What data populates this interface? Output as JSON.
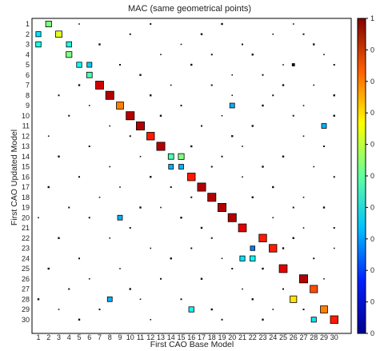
{
  "chart_data": {
    "type": "heatmap",
    "title": "MAC (same geometrical points)",
    "xlabel": "First CAO Base Model",
    "ylabel": "First CAO Updated Model",
    "x_categories": [
      "1",
      "2",
      "3",
      "4",
      "5",
      "6",
      "7",
      "8",
      "9",
      "10",
      "11",
      "12",
      "13",
      "14",
      "15",
      "16",
      "17",
      "18",
      "19",
      "20",
      "21",
      "22",
      "23",
      "24",
      "25",
      "26",
      "27",
      "28",
      "29",
      "30"
    ],
    "y_categories": [
      "1",
      "2",
      "3",
      "4",
      "5",
      "6",
      "7",
      "8",
      "9",
      "10",
      "11",
      "12",
      "13",
      "14",
      "15",
      "16",
      "17",
      "18",
      "19",
      "20",
      "21",
      "22",
      "23",
      "24",
      "25",
      "26",
      "27",
      "28",
      "29",
      "30"
    ],
    "xlim": [
      1,
      30
    ],
    "ylim": [
      1,
      30
    ],
    "y_axis_reversed": true,
    "grid": false,
    "colorbar": {
      "range": [
        0,
        1
      ],
      "tick_values": [
        0,
        0.1,
        0.2,
        0.3,
        0.4,
        0.5,
        0.6,
        0.7,
        0.8,
        0.9,
        1.0
      ],
      "tick_labels": [
        "0",
        "0",
        "0",
        "0",
        "0",
        "0",
        "0",
        "0",
        "0",
        "0",
        "1"
      ],
      "colormap": "jet",
      "colors": [
        "#00008f",
        "#0020ff",
        "#00c0ff",
        "#60ffa0",
        "#ffff00",
        "#ff6000",
        "#800000"
      ]
    },
    "cells": [
      [
        2,
        1,
        0.5
      ],
      [
        1,
        2,
        0.35
      ],
      [
        3,
        2,
        0.6
      ],
      [
        1,
        3,
        0.4
      ],
      [
        4,
        3,
        0.4
      ],
      [
        4,
        4,
        0.5
      ],
      [
        5,
        5,
        0.38
      ],
      [
        6,
        5,
        0.33
      ],
      [
        6,
        6,
        0.45
      ],
      [
        7,
        7,
        0.92
      ],
      [
        8,
        8,
        0.95
      ],
      [
        9,
        9,
        0.75
      ],
      [
        10,
        10,
        0.95
      ],
      [
        11,
        11,
        0.95
      ],
      [
        12,
        12,
        0.85
      ],
      [
        13,
        13,
        0.95
      ],
      [
        14,
        14,
        0.45
      ],
      [
        15,
        14,
        0.5
      ],
      [
        14,
        15,
        0.3
      ],
      [
        15,
        15,
        0.3
      ],
      [
        16,
        16,
        0.85
      ],
      [
        17,
        17,
        0.95
      ],
      [
        18,
        18,
        0.95
      ],
      [
        19,
        19,
        0.95
      ],
      [
        20,
        20,
        0.95
      ],
      [
        21,
        21,
        0.9
      ],
      [
        23,
        22,
        0.85
      ],
      [
        24,
        23,
        0.85
      ],
      [
        21,
        24,
        0.35
      ],
      [
        22,
        24,
        0.38
      ],
      [
        25,
        25,
        0.9
      ],
      [
        27,
        26,
        0.95
      ],
      [
        28,
        27,
        0.8
      ],
      [
        26,
        28,
        0.65
      ],
      [
        29,
        29,
        0.75
      ],
      [
        30,
        30,
        0.85
      ],
      [
        20,
        9,
        0.3
      ],
      [
        29,
        11,
        0.3
      ],
      [
        9,
        20,
        0.3
      ],
      [
        16,
        29,
        0.38
      ],
      [
        8,
        28,
        0.3
      ],
      [
        28,
        30,
        0.35
      ],
      [
        22,
        23,
        0.25
      ],
      [
        26,
        5,
        0.02
      ]
    ],
    "noise_cells": [
      [
        5,
        1
      ],
      [
        12,
        1
      ],
      [
        19,
        1
      ],
      [
        26,
        1
      ],
      [
        10,
        2
      ],
      [
        17,
        2
      ],
      [
        24,
        2
      ],
      [
        27,
        2
      ],
      [
        7,
        3
      ],
      [
        15,
        3
      ],
      [
        21,
        3
      ],
      [
        28,
        3
      ],
      [
        13,
        4
      ],
      [
        18,
        4
      ],
      [
        22,
        4
      ],
      [
        29,
        4
      ],
      [
        9,
        5
      ],
      [
        16,
        5
      ],
      [
        25,
        5
      ],
      [
        30,
        5
      ],
      [
        11,
        6
      ],
      [
        20,
        6
      ],
      [
        23,
        6
      ],
      [
        5,
        7
      ],
      [
        14,
        7
      ],
      [
        18,
        7
      ],
      [
        25,
        7
      ],
      [
        28,
        7
      ],
      [
        3,
        8
      ],
      [
        12,
        8
      ],
      [
        20,
        8
      ],
      [
        24,
        8
      ],
      [
        30,
        8
      ],
      [
        6,
        9
      ],
      [
        15,
        9
      ],
      [
        23,
        9
      ],
      [
        27,
        9
      ],
      [
        4,
        10
      ],
      [
        13,
        10
      ],
      [
        19,
        10
      ],
      [
        26,
        10
      ],
      [
        30,
        10
      ],
      [
        8,
        11
      ],
      [
        17,
        11
      ],
      [
        22,
        11
      ],
      [
        2,
        12
      ],
      [
        10,
        12
      ],
      [
        20,
        12
      ],
      [
        27,
        12
      ],
      [
        6,
        13
      ],
      [
        16,
        13
      ],
      [
        21,
        13
      ],
      [
        29,
        13
      ],
      [
        3,
        14
      ],
      [
        11,
        14
      ],
      [
        19,
        14
      ],
      [
        25,
        14
      ],
      [
        8,
        15
      ],
      [
        18,
        15
      ],
      [
        23,
        15
      ],
      [
        28,
        15
      ],
      [
        5,
        16
      ],
      [
        12,
        16
      ],
      [
        21,
        16
      ],
      [
        30,
        16
      ],
      [
        2,
        17
      ],
      [
        9,
        17
      ],
      [
        14,
        17
      ],
      [
        24,
        17
      ],
      [
        7,
        18
      ],
      [
        16,
        18
      ],
      [
        22,
        18
      ],
      [
        27,
        18
      ],
      [
        4,
        19
      ],
      [
        11,
        19
      ],
      [
        13,
        19
      ],
      [
        26,
        19
      ],
      [
        29,
        19
      ],
      [
        1,
        20
      ],
      [
        6,
        20
      ],
      [
        15,
        20
      ],
      [
        24,
        20
      ],
      [
        10,
        21
      ],
      [
        17,
        21
      ],
      [
        27,
        21
      ],
      [
        30,
        21
      ],
      [
        3,
        22
      ],
      [
        8,
        22
      ],
      [
        18,
        22
      ],
      [
        26,
        22
      ],
      [
        12,
        23
      ],
      [
        16,
        23
      ],
      [
        25,
        23
      ],
      [
        30,
        23
      ],
      [
        5,
        24
      ],
      [
        14,
        24
      ],
      [
        19,
        24
      ],
      [
        28,
        24
      ],
      [
        2,
        25
      ],
      [
        9,
        25
      ],
      [
        20,
        25
      ],
      [
        23,
        25
      ],
      [
        6,
        26
      ],
      [
        13,
        26
      ],
      [
        17,
        26
      ],
      [
        29,
        26
      ],
      [
        4,
        27
      ],
      [
        10,
        27
      ],
      [
        21,
        27
      ],
      [
        25,
        27
      ],
      [
        1,
        28
      ],
      [
        11,
        28
      ],
      [
        15,
        28
      ],
      [
        22,
        28
      ],
      [
        3,
        29
      ],
      [
        7,
        29
      ],
      [
        18,
        29
      ],
      [
        24,
        29
      ],
      [
        27,
        29
      ],
      [
        5,
        30
      ],
      [
        12,
        30
      ],
      [
        19,
        30
      ],
      [
        23,
        30
      ]
    ]
  }
}
